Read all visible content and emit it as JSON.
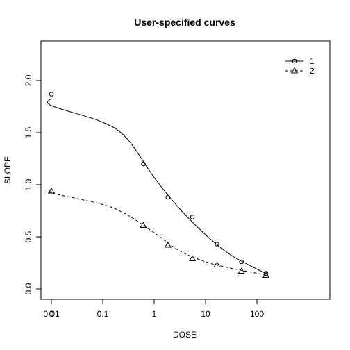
{
  "chart_data": {
    "type": "line",
    "title": "User-specified curves",
    "xlabel": "DOSE",
    "ylabel": "SLOPE",
    "x_scale": "log with zero dose plotted at left",
    "x_ticks": [
      {
        "value": 0,
        "label": "0"
      },
      {
        "value": 0.01,
        "label": "0.01"
      },
      {
        "value": 0.1,
        "label": "0.1"
      },
      {
        "value": 1,
        "label": "1"
      },
      {
        "value": 10,
        "label": "10"
      },
      {
        "value": 100,
        "label": "100"
      }
    ],
    "y_ticks": [
      {
        "value": 0.0,
        "label": "0.0"
      },
      {
        "value": 0.5,
        "label": "0.5"
      },
      {
        "value": 1.0,
        "label": "1.0"
      },
      {
        "value": 1.5,
        "label": "1.5"
      },
      {
        "value": 2.0,
        "label": "2.0"
      }
    ],
    "ylim": [
      -0.1,
      2.37
    ],
    "grid": false,
    "legend_position": "top-right",
    "series": [
      {
        "name": "1",
        "line_style": "solid",
        "marker": "circle",
        "points": [
          {
            "x": 0,
            "y": 1.87
          },
          {
            "x": 0.617,
            "y": 1.2
          },
          {
            "x": 1.852,
            "y": 0.88
          },
          {
            "x": 5.556,
            "y": 0.69
          },
          {
            "x": 16.67,
            "y": 0.43
          },
          {
            "x": 50,
            "y": 0.26
          },
          {
            "x": 150,
            "y": 0.15
          }
        ],
        "curve": [
          {
            "x": 0,
            "y": 1.83
          },
          {
            "x": 0.01,
            "y": 1.76
          },
          {
            "x": 0.1,
            "y": 1.6
          },
          {
            "x": 0.3,
            "y": 1.44
          },
          {
            "x": 1,
            "y": 1.07
          },
          {
            "x": 3,
            "y": 0.78
          },
          {
            "x": 10,
            "y": 0.52
          },
          {
            "x": 30,
            "y": 0.33
          },
          {
            "x": 100,
            "y": 0.19
          },
          {
            "x": 150,
            "y": 0.15
          }
        ]
      },
      {
        "name": "2",
        "line_style": "dashed",
        "marker": "triangle",
        "points": [
          {
            "x": 0,
            "y": 0.94
          },
          {
            "x": 0.617,
            "y": 0.61
          },
          {
            "x": 1.852,
            "y": 0.42
          },
          {
            "x": 5.556,
            "y": 0.29
          },
          {
            "x": 16.67,
            "y": 0.23
          },
          {
            "x": 50,
            "y": 0.17
          },
          {
            "x": 150,
            "y": 0.13
          }
        ],
        "curve": [
          {
            "x": 0,
            "y": 0.94
          },
          {
            "x": 0.01,
            "y": 0.92
          },
          {
            "x": 0.1,
            "y": 0.81
          },
          {
            "x": 0.3,
            "y": 0.71
          },
          {
            "x": 1,
            "y": 0.54
          },
          {
            "x": 3,
            "y": 0.37
          },
          {
            "x": 10,
            "y": 0.26
          },
          {
            "x": 30,
            "y": 0.2
          },
          {
            "x": 100,
            "y": 0.15
          },
          {
            "x": 150,
            "y": 0.13
          }
        ]
      }
    ]
  }
}
